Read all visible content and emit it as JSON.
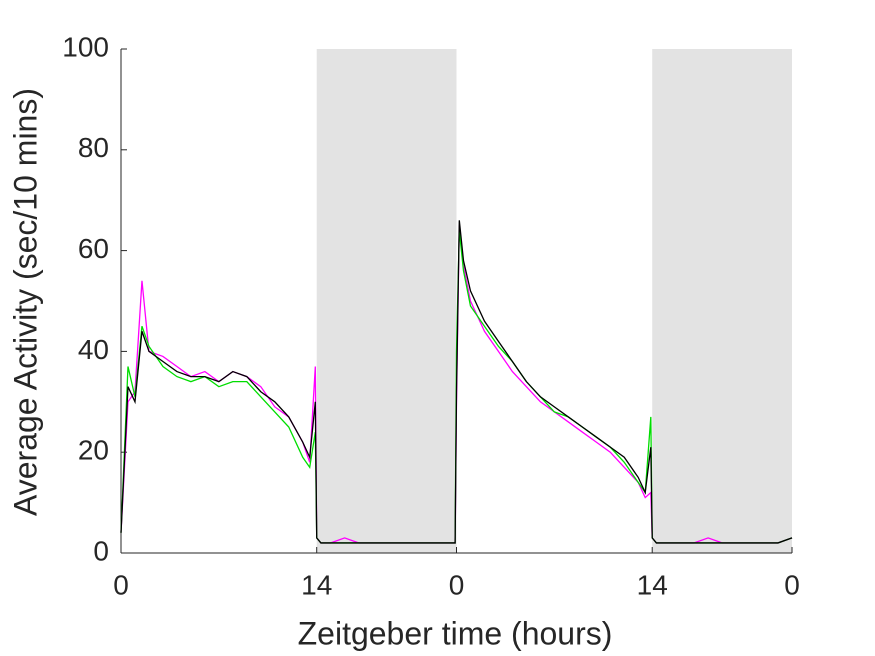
{
  "chart_data": {
    "type": "line",
    "x_label": "Zeitgeber time (hours)",
    "y_label": "Average Activity (sec/10 mins)",
    "x": [
      0,
      0.5,
      1,
      1.5,
      2,
      3,
      4,
      5,
      6,
      7,
      8,
      9,
      10,
      11,
      12,
      13,
      13.5,
      13.9,
      14,
      14.3,
      15,
      16,
      17,
      18,
      19,
      20,
      21,
      22,
      23,
      23.9,
      24,
      24.2,
      24.5,
      25,
      26,
      27,
      28,
      29,
      30,
      31,
      32,
      33,
      34,
      35,
      36,
      37,
      37.5,
      37.9,
      38,
      38.3,
      39,
      40,
      41,
      42,
      43,
      44,
      45,
      46,
      47,
      48
    ],
    "series": [
      {
        "color": "#ff00ff",
        "values": [
          4,
          30,
          32,
          54,
          40,
          39,
          37,
          35,
          36,
          34,
          36,
          35,
          33,
          29,
          27,
          22,
          18,
          37,
          3,
          2,
          2,
          3,
          2,
          2,
          2,
          2,
          2,
          2,
          2,
          2,
          30,
          65,
          57,
          50,
          44,
          40,
          36,
          33,
          30,
          28,
          26,
          24,
          22,
          20,
          17,
          14,
          11,
          12,
          3,
          2,
          2,
          2,
          2,
          3,
          2,
          2,
          2,
          2,
          2,
          3
        ]
      },
      {
        "color": "#00dd00",
        "values": [
          4,
          37,
          31,
          45,
          41,
          37,
          35,
          34,
          35,
          33,
          34,
          34,
          31,
          28,
          25,
          19,
          17,
          24,
          3,
          2,
          2,
          2,
          2,
          2,
          2,
          2,
          2,
          2,
          2,
          2,
          40,
          64,
          56,
          49,
          45,
          41,
          38,
          34,
          31,
          28,
          27,
          25,
          23,
          21,
          18,
          14,
          12,
          27,
          3,
          2,
          2,
          2,
          2,
          2,
          2,
          2,
          2,
          2,
          2,
          3
        ]
      },
      {
        "color": "#000000",
        "values": [
          4,
          33,
          30,
          44,
          40,
          38,
          36,
          35,
          35,
          34,
          36,
          35,
          32,
          30,
          27,
          22,
          19,
          30,
          3,
          2,
          2,
          2,
          2,
          2,
          2,
          2,
          2,
          2,
          2,
          2,
          32,
          66,
          58,
          52,
          46,
          42,
          38,
          34,
          31,
          29,
          27,
          25,
          23,
          21,
          19,
          15,
          12,
          21,
          3,
          2,
          2,
          2,
          2,
          2,
          2,
          2,
          2,
          2,
          2,
          3
        ]
      }
    ],
    "dark_periods": [
      [
        14,
        24
      ],
      [
        38,
        48
      ]
    ],
    "dark_color": "#e3e3e3",
    "xlim": [
      0,
      48
    ],
    "xticks": [
      0,
      14,
      {
        "value": 24,
        "label": "0"
      },
      {
        "value": 38,
        "label": "14"
      },
      {
        "value": 48,
        "label": "0"
      }
    ],
    "ylim": [
      0,
      100
    ],
    "yticks": [
      0,
      20,
      40,
      60,
      80,
      100
    ]
  }
}
